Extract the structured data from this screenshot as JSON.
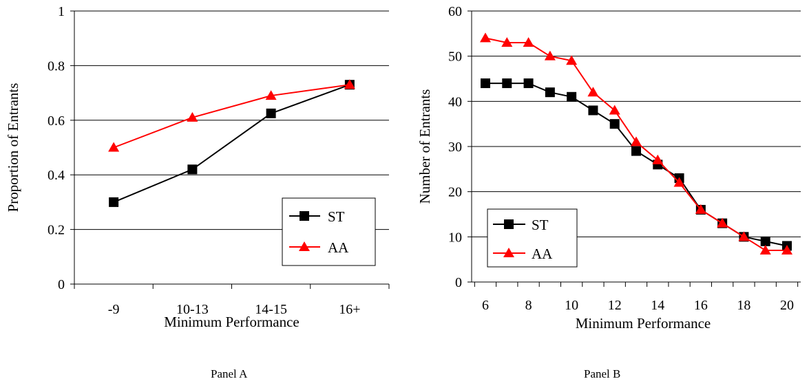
{
  "chart_data": [
    {
      "type": "line",
      "caption": "Panel A",
      "xlabel": "Minimum Performance",
      "ylabel": "Proportion of Entrants",
      "categories": [
        "-9",
        "10-13",
        "14-15",
        "16+"
      ],
      "ylim": [
        0,
        1
      ],
      "yticks": [
        "0",
        "0.2",
        "0.4",
        "0.6",
        "0.8",
        "1"
      ],
      "grid": true,
      "legend_position": "bottom-right",
      "series": [
        {
          "name": "ST",
          "color": "#000000",
          "marker": "square",
          "values": [
            0.3,
            0.42,
            0.625,
            0.73
          ]
        },
        {
          "name": "AA",
          "color": "#ff0000",
          "marker": "triangle",
          "values": [
            0.5,
            0.61,
            0.69,
            0.73
          ]
        }
      ]
    },
    {
      "type": "line",
      "caption": "Panel B",
      "xlabel": "Minimum Performance",
      "ylabel": "Number of Entrants",
      "x": [
        6,
        7,
        8,
        9,
        10,
        11,
        12,
        13,
        14,
        15,
        16,
        17,
        18,
        19,
        20
      ],
      "xticks": [
        "6",
        "8",
        "10",
        "12",
        "14",
        "16",
        "18",
        "20"
      ],
      "ylim": [
        0,
        60
      ],
      "yticks": [
        "0",
        "10",
        "20",
        "30",
        "40",
        "50",
        "60"
      ],
      "grid": true,
      "legend_position": "bottom-left",
      "series": [
        {
          "name": "ST",
          "color": "#000000",
          "marker": "square",
          "values": [
            44,
            44,
            44,
            42,
            41,
            38,
            35,
            29,
            26,
            23,
            16,
            13,
            10,
            9,
            8
          ]
        },
        {
          "name": "AA",
          "color": "#ff0000",
          "marker": "triangle",
          "values": [
            54,
            53,
            53,
            50,
            49,
            42,
            38,
            31,
            27,
            22,
            16,
            13,
            10,
            7,
            7
          ]
        }
      ]
    }
  ]
}
